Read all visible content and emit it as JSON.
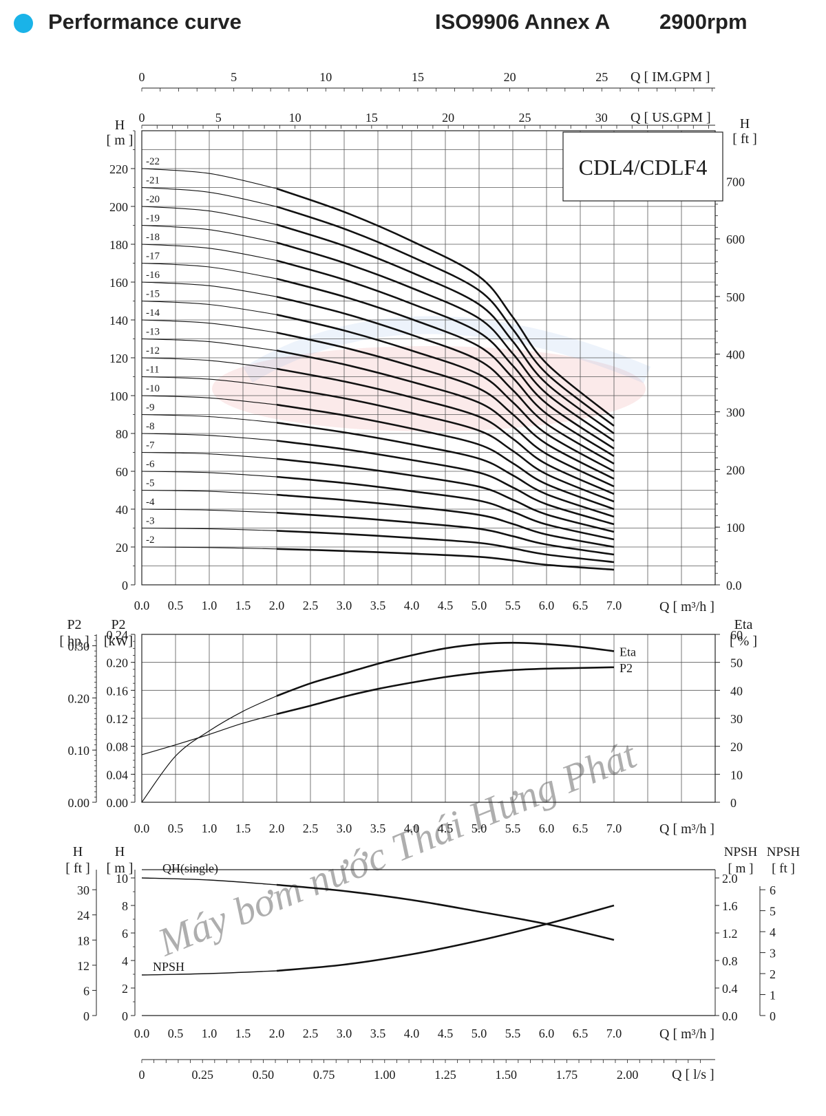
{
  "header": {
    "title": "Performance curve",
    "standard": "ISO9906 Annex A",
    "speed": "2900rpm",
    "bullet_color": "#1ab3e8"
  },
  "watermark": {
    "text": "Máy bơm nước Thái Hưng Phát",
    "color": "#e9a8a8"
  },
  "chart_data": [
    {
      "id": "head",
      "type": "line",
      "model": "CDL4/CDLF4",
      "xlabel": "Q [ m³/h ]",
      "x_ticks": [
        "0.0",
        "0.5",
        "1.0",
        "1.5",
        "2.0",
        "2.5",
        "3.0",
        "3.5",
        "4.0",
        "4.5",
        "5.0",
        "5.5",
        "6.0",
        "6.5",
        "7.0"
      ],
      "xlim": [
        0,
        8.5
      ],
      "ylabel_left": {
        "name": "H",
        "unit": "[ m ]"
      },
      "ylim": [
        0,
        240
      ],
      "y_ticks_left": [
        "0",
        "20",
        "40",
        "60",
        "80",
        "100",
        "120",
        "140",
        "160",
        "180",
        "200",
        "220"
      ],
      "ylabel_right": {
        "name": "H",
        "unit": "[ ft ]"
      },
      "y_ticks_right": [
        "0.0",
        "100",
        "200",
        "300",
        "400",
        "500",
        "600",
        "700"
      ],
      "top_axis_us": {
        "label": "Q [ US.GPM ]",
        "ticks": [
          "0",
          "5",
          "10",
          "15",
          "20",
          "25",
          "30"
        ]
      },
      "top_axis_im": {
        "label": "Q [ IM.GPM ]",
        "ticks": [
          "0",
          "5",
          "10",
          "15",
          "20",
          "25"
        ]
      },
      "series": [
        {
          "name": "-2",
          "stages": 2,
          "values": [
            20.0,
            19.7,
            19.0,
            17.9,
            16.5,
            14.8,
            12.9,
            10.6,
            8.0
          ]
        },
        {
          "name": "-3",
          "stages": 3,
          "values": [
            30.0,
            29.6,
            28.6,
            26.9,
            24.8,
            22.2,
            19.3,
            16.0,
            12.0
          ]
        },
        {
          "name": "-4",
          "stages": 4,
          "values": [
            40.0,
            39.5,
            38.1,
            35.8,
            33.0,
            29.6,
            25.7,
            21.3,
            16.0
          ]
        },
        {
          "name": "-5",
          "stages": 5,
          "values": [
            50.0,
            49.4,
            47.6,
            44.8,
            41.3,
            37.0,
            32.2,
            26.6,
            20.0
          ]
        },
        {
          "name": "-6",
          "stages": 6,
          "values": [
            60.0,
            59.3,
            57.1,
            53.8,
            49.5,
            44.5,
            38.6,
            31.9,
            24.0
          ]
        },
        {
          "name": "-7",
          "stages": 7,
          "values": [
            70.0,
            69.2,
            66.6,
            62.7,
            57.8,
            51.9,
            45.0,
            37.2,
            28.0
          ]
        },
        {
          "name": "-8",
          "stages": 8,
          "values": [
            80.0,
            79.0,
            76.2,
            71.7,
            66.0,
            59.3,
            51.5,
            42.6,
            32.0
          ]
        },
        {
          "name": "-9",
          "stages": 9,
          "values": [
            90.0,
            88.9,
            85.7,
            80.6,
            74.3,
            66.7,
            57.9,
            47.9,
            36.0
          ]
        },
        {
          "name": "-10",
          "stages": 10,
          "values": [
            100.0,
            98.8,
            95.2,
            89.6,
            82.6,
            74.1,
            64.3,
            53.2,
            40.0
          ]
        },
        {
          "name": "-11",
          "stages": 11,
          "values": [
            110.0,
            108.7,
            104.7,
            98.6,
            90.8,
            81.5,
            70.8,
            58.5,
            44.0
          ]
        },
        {
          "name": "-12",
          "stages": 12,
          "values": [
            120.0,
            118.6,
            114.2,
            107.5,
            99.1,
            88.9,
            77.2,
            63.8,
            48.0
          ]
        },
        {
          "name": "-13",
          "stages": 13,
          "values": [
            130.0,
            128.5,
            123.8,
            116.5,
            107.3,
            96.3,
            83.6,
            69.2,
            52.0
          ]
        },
        {
          "name": "-14",
          "stages": 14,
          "values": [
            140.0,
            138.3,
            133.3,
            125.4,
            115.6,
            103.7,
            90.1,
            74.5,
            56.0
          ]
        },
        {
          "name": "-15",
          "stages": 15,
          "values": [
            150.0,
            148.2,
            142.8,
            134.4,
            123.8,
            111.2,
            96.5,
            79.8,
            60.0
          ]
        },
        {
          "name": "-16",
          "stages": 16,
          "values": [
            160.0,
            158.1,
            152.3,
            143.4,
            132.1,
            118.6,
            102.9,
            85.1,
            64.0
          ]
        },
        {
          "name": "-17",
          "stages": 17,
          "values": [
            170.0,
            168.0,
            161.8,
            152.3,
            140.4,
            126.0,
            109.4,
            90.4,
            68.0
          ]
        },
        {
          "name": "-18",
          "stages": 18,
          "values": [
            180.0,
            177.9,
            171.4,
            161.3,
            148.6,
            133.4,
            115.8,
            95.8,
            72.0
          ]
        },
        {
          "name": "-19",
          "stages": 19,
          "values": [
            190.0,
            187.7,
            180.9,
            170.2,
            156.9,
            140.8,
            122.2,
            101.1,
            76.0
          ]
        },
        {
          "name": "-20",
          "stages": 20,
          "values": [
            200.0,
            197.6,
            190.4,
            179.2,
            165.1,
            148.2,
            128.7,
            106.4,
            80.0
          ]
        },
        {
          "name": "-21",
          "stages": 21,
          "values": [
            210.0,
            207.5,
            199.9,
            188.2,
            173.4,
            155.6,
            135.1,
            111.7,
            84.0
          ]
        },
        {
          "name": "-22",
          "stages": 22,
          "values": [
            220.0,
            217.4,
            209.4,
            197.1,
            181.7,
            163.0,
            141.5,
            117.0,
            88.0
          ]
        }
      ],
      "x": [
        0,
        1,
        2,
        3,
        4,
        5,
        5.5,
        6,
        7
      ]
    },
    {
      "id": "power",
      "type": "line",
      "xlabel": "Q [ m³/h ]",
      "x_ticks": [
        "0.0",
        "0.5",
        "1.0",
        "1.5",
        "2.0",
        "2.5",
        "3.0",
        "3.5",
        "4.0",
        "4.5",
        "5.0",
        "5.5",
        "6.0",
        "6.5",
        "7.0"
      ],
      "ylabel_hp": {
        "name": "P2",
        "unit": "[ hp ]"
      },
      "y_ticks_hp": [
        "0.00",
        "0.10",
        "0.20",
        "0.30"
      ],
      "ylabel_kw": {
        "name": "P2",
        "unit": "[kW]"
      },
      "ylim_kw": [
        0,
        0.24
      ],
      "y_ticks_kw": [
        "0.00",
        "0.04",
        "0.08",
        "0.12",
        "0.16",
        "0.20",
        "0.24"
      ],
      "ylabel_right": {
        "name": "Eta",
        "unit": "[ % ]"
      },
      "y_ticks_right": [
        "0",
        "10",
        "20",
        "30",
        "40",
        "50",
        "60"
      ],
      "series": [
        {
          "name": "Eta",
          "unit": "%",
          "x": [
            0,
            0.5,
            1,
            1.5,
            2,
            2.5,
            3,
            3.5,
            4,
            4.5,
            5,
            5.5,
            6,
            6.5,
            7
          ],
          "values": [
            0,
            16.5,
            25.5,
            32.5,
            38.0,
            42.5,
            46.0,
            49.5,
            52.5,
            55.0,
            56.5,
            57.0,
            56.5,
            55.5,
            54.0
          ]
        },
        {
          "name": "P2",
          "unit": "kW",
          "x": [
            0,
            0.5,
            1,
            1.5,
            2,
            2.5,
            3,
            3.5,
            4,
            4.5,
            5,
            5.5,
            6,
            6.5,
            7
          ],
          "values": [
            0.068,
            0.082,
            0.097,
            0.113,
            0.126,
            0.138,
            0.151,
            0.162,
            0.171,
            0.179,
            0.185,
            0.189,
            0.191,
            0.192,
            0.193
          ]
        }
      ]
    },
    {
      "id": "npsh",
      "type": "line",
      "xlabel": "Q [ m³/h ]",
      "x_ticks": [
        "0.0",
        "0.5",
        "1.0",
        "1.5",
        "2.0",
        "2.5",
        "3.0",
        "3.5",
        "4.0",
        "4.5",
        "5.0",
        "5.5",
        "6.0",
        "6.5",
        "7.0"
      ],
      "ylabel_ft": {
        "name": "H",
        "unit": "[ ft ]"
      },
      "y_ticks_ft": [
        "0",
        "6",
        "12",
        "18",
        "24",
        "30"
      ],
      "ylabel_m": {
        "name": "H",
        "unit": "[ m ]"
      },
      "ylim_m": [
        0,
        10
      ],
      "y_ticks_m": [
        "0",
        "2",
        "4",
        "6",
        "8",
        "10"
      ],
      "ylabel_npsh_m": {
        "name": "NPSH",
        "unit": "[ m ]"
      },
      "y_ticks_npsh_m": [
        "0.0",
        "0.4",
        "0.8",
        "1.2",
        "1.6",
        "2.0"
      ],
      "ylabel_npsh_ft": {
        "name": "NPSH",
        "unit": "[ ft ]"
      },
      "y_ticks_npsh_ft": [
        "0",
        "1",
        "2",
        "3",
        "4",
        "5",
        "6"
      ],
      "series": [
        {
          "name": "QH(single)",
          "unit": "m",
          "x": [
            0,
            1,
            2,
            3,
            4,
            5,
            6,
            7
          ],
          "values": [
            10.0,
            9.85,
            9.5,
            9.05,
            8.4,
            7.55,
            6.65,
            5.5
          ]
        },
        {
          "name": "NPSH",
          "unit": "m",
          "x": [
            0,
            1,
            2,
            3,
            4,
            5,
            6,
            7
          ],
          "values": [
            0.59,
            0.61,
            0.65,
            0.74,
            0.89,
            1.09,
            1.33,
            1.6
          ]
        }
      ]
    },
    {
      "id": "flow-ls",
      "type": "axis",
      "xlabel": "Q [ l/s ]",
      "x_ticks": [
        "0",
        "0.25",
        "0.50",
        "0.75",
        "1.00",
        "1.25",
        "1.50",
        "1.75",
        "2.00"
      ]
    }
  ]
}
